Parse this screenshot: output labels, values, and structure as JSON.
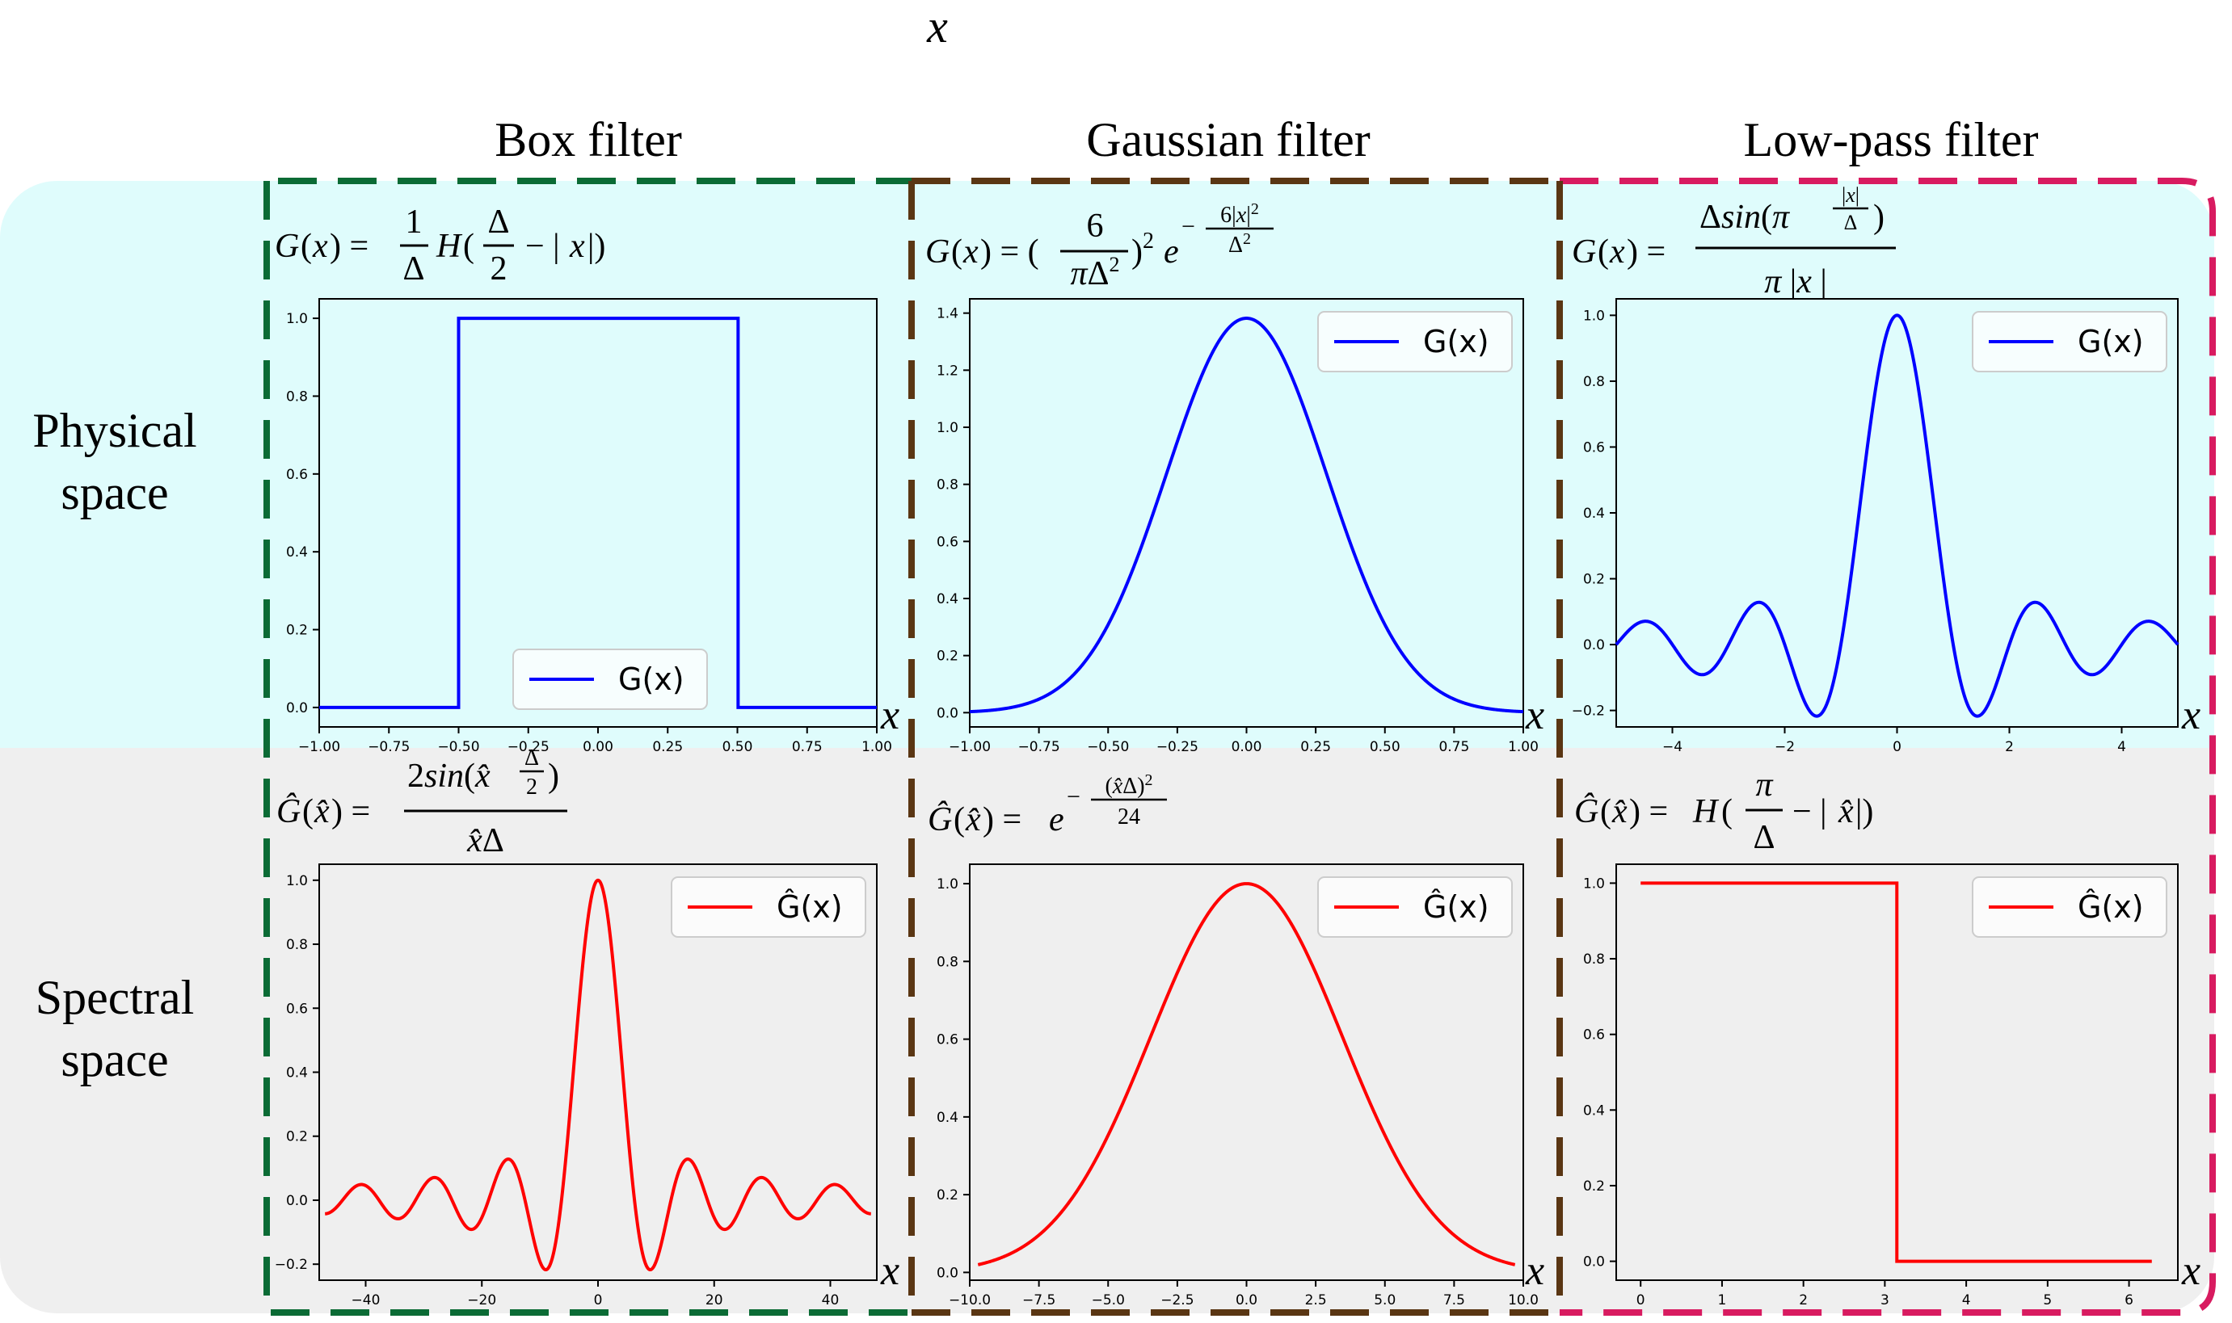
{
  "top_label": "x",
  "columns": [
    {
      "title": "Box filter",
      "border_color": "#0b6b35"
    },
    {
      "title": "Gaussian filter",
      "border_color": "#5a3613"
    },
    {
      "title": "Low-pass filter",
      "border_color": "#d81b60"
    }
  ],
  "rows": [
    {
      "label_lines": [
        "Physical",
        "space"
      ],
      "background": "#dffcfc"
    },
    {
      "label_lines": [
        "Spectral",
        "space"
      ],
      "background": "#efefef"
    }
  ],
  "axis_symbol": "x",
  "formulas": {
    "box_phys": "G(x) = (1/Δ) H(Δ/2 − |x|)",
    "gauss_phys": "G(x) = (6/(πΔ²))² e^(−6|x|²/Δ²)",
    "lowpass_phys": "G(x) = Δ sin(π |x|/Δ) / (π|x|)",
    "box_spec": "Ĝ(x̂) = 2 sin(x̂ Δ/2) / (x̂ Δ)",
    "gauss_spec": "Ĝ(x̂) = e^(−(x̂Δ)²/24)",
    "lowpass_spec": "Ĝ(x̂) = H(π/Δ − |x̂|)"
  },
  "colors": {
    "physical_line": "#0000ff",
    "spectral_line": "#ff0000"
  },
  "chart_data": [
    {
      "type": "line",
      "panel": "box_physical",
      "series": [
        {
          "name": "G(x)",
          "function": "box",
          "delta": 1.0
        }
      ],
      "xlim": [
        -1.0,
        1.0
      ],
      "ylim": [
        -0.05,
        1.05
      ],
      "xticks": [
        -1.0,
        -0.75,
        -0.5,
        -0.25,
        0.0,
        0.25,
        0.5,
        0.75,
        1.0
      ],
      "xtick_labels": [
        "−1.00",
        "−0.75",
        "−0.50",
        "−0.25",
        "0.00",
        "0.25",
        "0.50",
        "0.75",
        "1.00"
      ],
      "yticks": [
        0.0,
        0.2,
        0.4,
        0.6,
        0.8,
        1.0
      ],
      "ytick_labels": [
        "0.0",
        "0.2",
        "0.4",
        "0.6",
        "0.8",
        "1.0"
      ],
      "legend": "bottom-center",
      "grid": false
    },
    {
      "type": "line",
      "panel": "gaussian_physical",
      "series": [
        {
          "name": "G(x)",
          "function": "gaussian",
          "delta": 1.0
        }
      ],
      "xlim": [
        -1.0,
        1.0
      ],
      "ylim": [
        -0.05,
        1.45
      ],
      "xticks": [
        -1.0,
        -0.75,
        -0.5,
        -0.25,
        0.0,
        0.25,
        0.5,
        0.75,
        1.0
      ],
      "xtick_labels": [
        "−1.00",
        "−0.75",
        "−0.50",
        "−0.25",
        "0.00",
        "0.25",
        "0.50",
        "0.75",
        "1.00"
      ],
      "yticks": [
        0.0,
        0.2,
        0.4,
        0.6,
        0.8,
        1.0,
        1.2,
        1.4
      ],
      "ytick_labels": [
        "0.0",
        "0.2",
        "0.4",
        "0.6",
        "0.8",
        "1.0",
        "1.2",
        "1.4"
      ],
      "legend": "top-right",
      "grid": false
    },
    {
      "type": "line",
      "panel": "lowpass_physical",
      "series": [
        {
          "name": "G(x)",
          "function": "sinc",
          "delta": 1.0
        }
      ],
      "xlim": [
        -5.0,
        5.0
      ],
      "ylim": [
        -0.25,
        1.05
      ],
      "xticks": [
        -4,
        -2,
        0,
        2,
        4
      ],
      "xtick_labels": [
        "−4",
        "−2",
        "0",
        "2",
        "4"
      ],
      "yticks": [
        -0.2,
        0.0,
        0.2,
        0.4,
        0.6,
        0.8,
        1.0
      ],
      "ytick_labels": [
        "−0.2",
        "0.0",
        "0.2",
        "0.4",
        "0.6",
        "0.8",
        "1.0"
      ],
      "legend": "top-right",
      "grid": false
    },
    {
      "type": "line",
      "panel": "box_spectral",
      "series": [
        {
          "name": "Ĝ(x)",
          "function": "box_spectrum",
          "delta": 1.0
        }
      ],
      "xlim": [
        -48.0,
        48.0
      ],
      "ylim": [
        -0.25,
        1.05
      ],
      "xticks": [
        -40,
        -20,
        0,
        20,
        40
      ],
      "xtick_labels": [
        "−40",
        "−20",
        "0",
        "20",
        "40"
      ],
      "yticks": [
        -0.2,
        0.0,
        0.2,
        0.4,
        0.6,
        0.8,
        1.0
      ],
      "ytick_labels": [
        "−0.2",
        "0.0",
        "0.2",
        "0.4",
        "0.6",
        "0.8",
        "1.0"
      ],
      "legend": "top-right",
      "grid": false
    },
    {
      "type": "line",
      "panel": "gaussian_spectral",
      "series": [
        {
          "name": "Ĝ(x)",
          "function": "gaussian_spectrum",
          "delta": 1.0
        }
      ],
      "xlim": [
        -10.0,
        10.0
      ],
      "ylim": [
        -0.02,
        1.05
      ],
      "xticks": [
        -10.0,
        -7.5,
        -5.0,
        -2.5,
        0.0,
        2.5,
        5.0,
        7.5,
        10.0
      ],
      "xtick_labels": [
        "−10.0",
        "−7.5",
        "−5.0",
        "−2.5",
        "0.0",
        "2.5",
        "5.0",
        "7.5",
        "10.0"
      ],
      "yticks": [
        0.0,
        0.2,
        0.4,
        0.6,
        0.8,
        1.0
      ],
      "ytick_labels": [
        "0.0",
        "0.2",
        "0.4",
        "0.6",
        "0.8",
        "1.0"
      ],
      "legend": "top-right",
      "grid": false
    },
    {
      "type": "line",
      "panel": "lowpass_spectral",
      "series": [
        {
          "name": "Ĝ(x)",
          "function": "step_spectrum",
          "delta": 1.0
        }
      ],
      "xlim": [
        -0.3,
        6.6
      ],
      "ylim": [
        -0.05,
        1.05
      ],
      "xticks": [
        0,
        1,
        2,
        3,
        4,
        5,
        6
      ],
      "xtick_labels": [
        "0",
        "1",
        "2",
        "3",
        "4",
        "5",
        "6"
      ],
      "yticks": [
        0.0,
        0.2,
        0.4,
        0.6,
        0.8,
        1.0
      ],
      "ytick_labels": [
        "0.0",
        "0.2",
        "0.4",
        "0.6",
        "0.8",
        "1.0"
      ],
      "legend": "top-right",
      "grid": false
    }
  ]
}
